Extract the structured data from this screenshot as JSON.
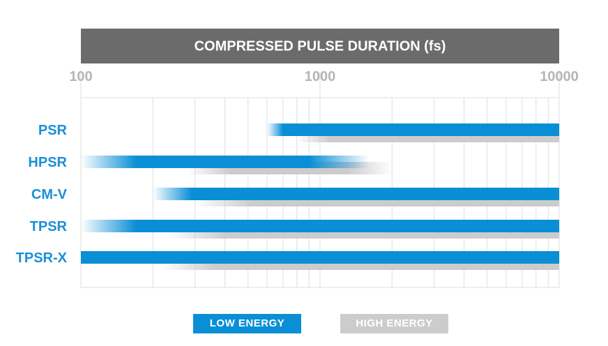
{
  "chart_data": {
    "type": "bar",
    "title": "COMPRESSED PULSE DURATION (fs)",
    "x_scale": "log",
    "xlim": [
      100,
      10000
    ],
    "x_ticks": [
      100,
      1000,
      10000
    ],
    "x_tick_labels": [
      "100",
      "1000",
      "10000"
    ],
    "categories": [
      "PSR",
      "HPSR",
      "CM-V",
      "TPSR",
      "TPSR-X"
    ],
    "series": [
      {
        "name": "LOW ENERGY",
        "color": "#0a8fd6",
        "ranges": [
          {
            "category": "PSR",
            "min": 600,
            "max": 10000,
            "fade_start": 600,
            "fade_end": 700
          },
          {
            "category": "HPSR",
            "min": 100,
            "max": 1600,
            "fade_start": 100,
            "fade_end": 170,
            "fade_out_start": 900,
            "fade_out_end": 1600
          },
          {
            "category": "CM-V",
            "min": 200,
            "max": 10000,
            "fade_start": 200,
            "fade_end": 290
          },
          {
            "category": "TPSR",
            "min": 100,
            "max": 10000,
            "fade_start": 100,
            "fade_end": 170
          },
          {
            "category": "TPSR-X",
            "min": 100,
            "max": 10000
          }
        ]
      },
      {
        "name": "HIGH ENERGY",
        "color": "#cccccc",
        "ranges": [
          {
            "category": "PSR",
            "min": 800,
            "max": 10000,
            "fade_start": 800,
            "fade_end": 1100
          },
          {
            "category": "HPSR",
            "min": 280,
            "max": 2000,
            "fade_start": 280,
            "fade_end": 420,
            "fade_out_start": 1300,
            "fade_out_end": 2000
          },
          {
            "category": "CM-V",
            "min": 300,
            "max": 10000,
            "fade_start": 300,
            "fade_end": 520
          },
          {
            "category": "TPSR",
            "min": 230,
            "max": 10000,
            "fade_start": 230,
            "fade_end": 400
          },
          {
            "category": "TPSR-X",
            "min": 220,
            "max": 10000,
            "fade_start": 220,
            "fade_end": 360
          }
        ]
      }
    ],
    "grid": true,
    "legend": "bottom"
  }
}
